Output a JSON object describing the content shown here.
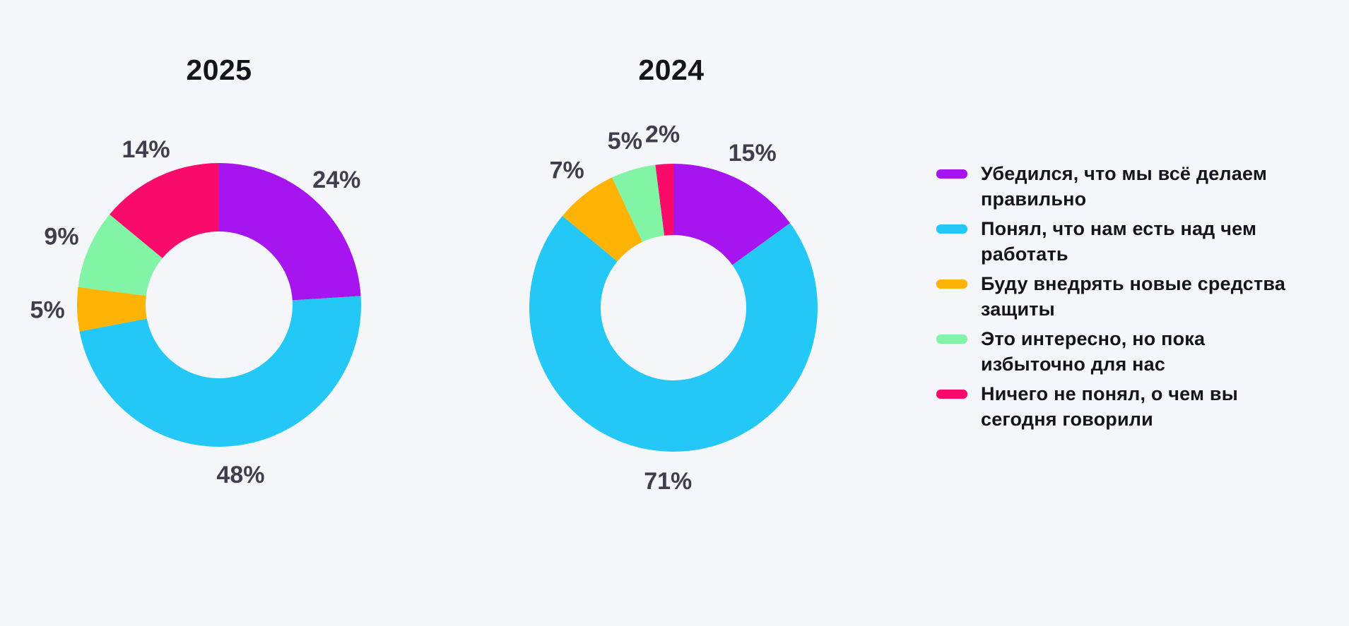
{
  "page": {
    "background_color": "#F5F6FA",
    "title_color": "#14141C",
    "slice_label_color": "#3F3E4D"
  },
  "legend": {
    "items": [
      {
        "color": "#A614F0",
        "lines": [
          "Убедился, что мы всё делаем",
          "правильно"
        ]
      },
      {
        "color": "#23C8F6",
        "lines": [
          "Понял, что нам есть над чем",
          "работать"
        ]
      },
      {
        "color": "#FFB405",
        "lines": [
          "Буду внедрять новые средства",
          "защиты"
        ]
      },
      {
        "color": "#82F4A6",
        "lines": [
          "Это интересно, но пока",
          "избыточно для нас"
        ]
      },
      {
        "color": "#F90A6B",
        "lines": [
          "Ничего не понял, о чем вы",
          "сегодня говорили"
        ]
      }
    ]
  },
  "chart_data": [
    {
      "type": "pie",
      "subtype": "donut",
      "title": "2025",
      "unit": "%",
      "start_angle_deg": 0,
      "direction": "clockwise",
      "legend_position": "right",
      "categories": [
        "Убедился, что мы всё делаем правильно",
        "Понял, что нам есть над чем работать",
        "Буду внедрять новые средства защиты",
        "Это интересно, но пока избыточно для нас",
        "Ничего не понял, о чем вы сегодня говорили"
      ],
      "values": [
        24,
        48,
        5,
        9,
        14
      ],
      "labels": [
        "24%",
        "48%",
        "5%",
        "9%",
        "14%"
      ],
      "colors": [
        "#A614F0",
        "#23C8F6",
        "#FFB405",
        "#82F4A6",
        "#F90A6B"
      ]
    },
    {
      "type": "pie",
      "subtype": "donut",
      "title": "2024",
      "unit": "%",
      "start_angle_deg": 0,
      "direction": "clockwise",
      "legend_position": "right",
      "categories": [
        "Убедился, что мы всё делаем правильно",
        "Понял, что нам есть над чем работать",
        "Буду внедрять новые средства защиты",
        "Это интересно, но пока избыточно для нас",
        "Ничего не понял, о чем вы сегодня говорили"
      ],
      "values": [
        15,
        71,
        7,
        5,
        2
      ],
      "labels": [
        "15%",
        "71%",
        "7%",
        "5%",
        "2%"
      ],
      "colors": [
        "#A614F0",
        "#23C8F6",
        "#FFB405",
        "#82F4A6",
        "#F90A6B"
      ]
    }
  ]
}
